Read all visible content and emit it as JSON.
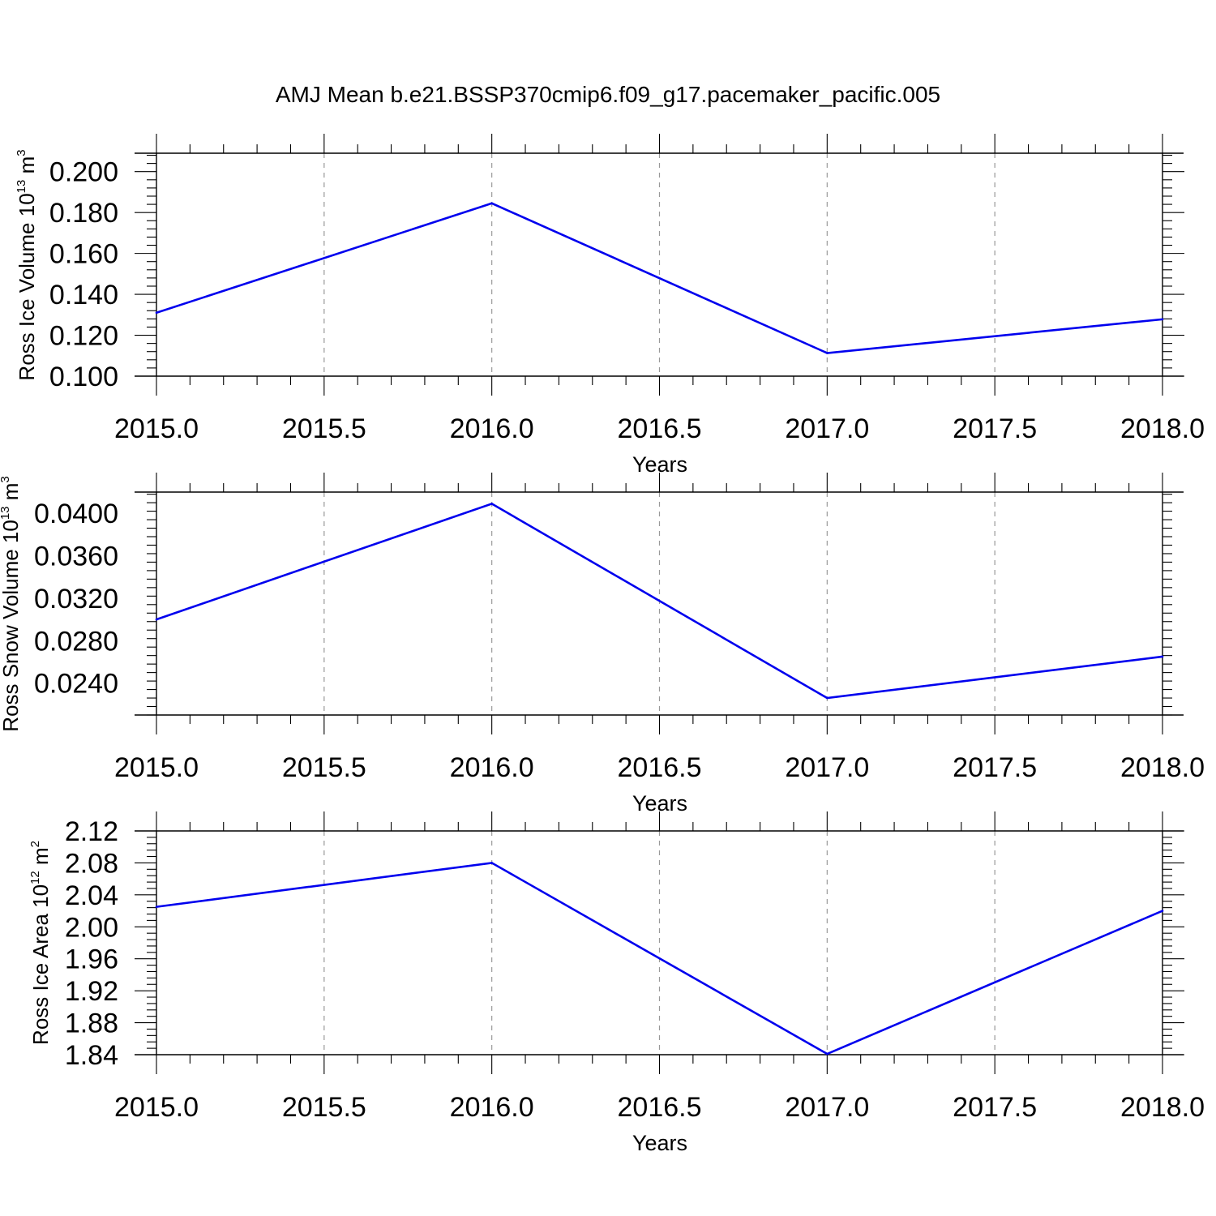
{
  "figure": {
    "title": "AMJ Mean b.e21.BSSP370cmip6.f09_g17.pacemaker_pacific.005"
  },
  "chart_data": [
    {
      "type": "line",
      "xlabel": "Years",
      "ylabel": "Ross Ice Volume 10",
      "ylabel_exp": "13",
      "ylabel_unit": "m",
      "ylabel_unit_exp": "3",
      "xlim": [
        2015.0,
        2018.0
      ],
      "ylim": [
        0.1,
        0.209
      ],
      "xticks": [
        "2015.0",
        "2015.5",
        "2016.0",
        "2016.5",
        "2017.0",
        "2017.5",
        "2018.0"
      ],
      "yticks": [
        "0.100",
        "0.120",
        "0.140",
        "0.160",
        "0.180",
        "0.200"
      ],
      "grid": "dashed vertical at x ticks",
      "color": "#0000ee",
      "x": [
        2015,
        2016,
        2017,
        2018
      ],
      "y": [
        0.131,
        0.1845,
        0.1113,
        0.1278
      ]
    },
    {
      "type": "line",
      "xlabel": "Years",
      "ylabel": "Ross Snow Volume 10",
      "ylabel_exp": "13",
      "ylabel_unit": "m",
      "ylabel_unit_exp": "3",
      "xlim": [
        2015.0,
        2018.0
      ],
      "ylim": [
        0.021,
        0.042
      ],
      "xticks": [
        "2015.0",
        "2015.5",
        "2016.0",
        "2016.5",
        "2017.0",
        "2017.5",
        "2018.0"
      ],
      "yticks": [
        "0.0240",
        "0.0280",
        "0.0320",
        "0.0360",
        "0.0400"
      ],
      "grid": "dashed vertical at x ticks",
      "color": "#0000ee",
      "x": [
        2015,
        2016,
        2017,
        2018
      ],
      "y": [
        0.03,
        0.0409,
        0.0226,
        0.0265
      ]
    },
    {
      "type": "line",
      "xlabel": "Years",
      "ylabel": "Ross Ice Area 10",
      "ylabel_exp": "12",
      "ylabel_unit": "m",
      "ylabel_unit_exp": "2",
      "xlim": [
        2015.0,
        2018.0
      ],
      "ylim": [
        1.84,
        2.12
      ],
      "xticks": [
        "2015.0",
        "2015.5",
        "2016.0",
        "2016.5",
        "2017.0",
        "2017.5",
        "2018.0"
      ],
      "yticks": [
        "1.84",
        "1.88",
        "1.92",
        "1.96",
        "2.00",
        "2.04",
        "2.08",
        "2.12"
      ],
      "grid": "dashed vertical at x ticks",
      "color": "#0000ee",
      "x": [
        2015,
        2016,
        2017,
        2018
      ],
      "y": [
        2.025,
        2.08,
        1.841,
        2.02
      ]
    }
  ]
}
